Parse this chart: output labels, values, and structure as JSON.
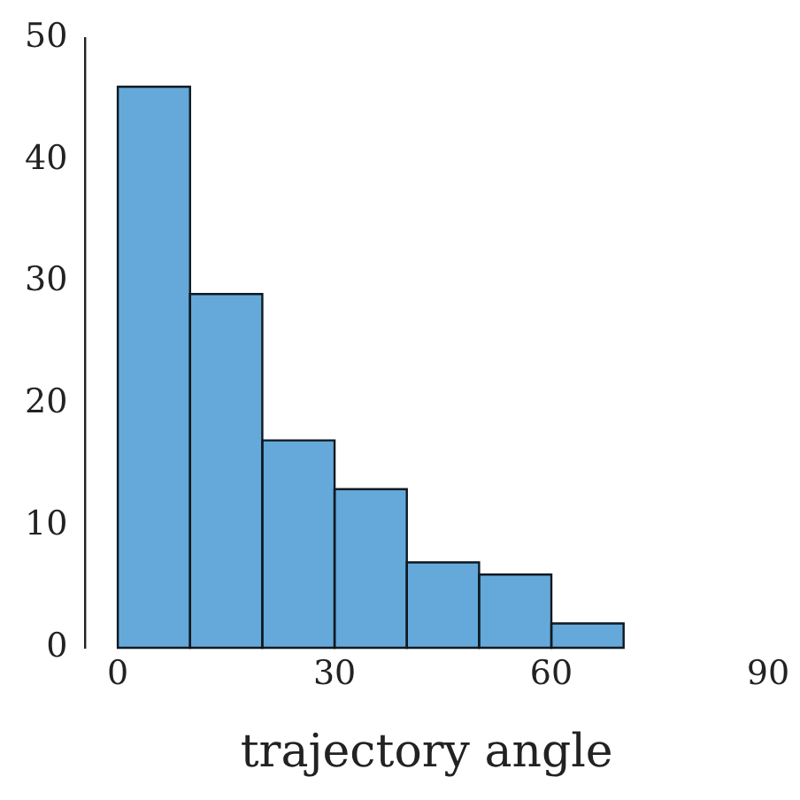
{
  "chart_data": {
    "type": "histogram",
    "xlabel": "trajectory angle",
    "bins": [
      0,
      10,
      20,
      30,
      40,
      50,
      60,
      70
    ],
    "values": [
      46,
      29,
      17,
      13,
      7,
      6,
      2
    ],
    "color": "#64a9d9",
    "xlim": [
      -4.5,
      90
    ],
    "xticks": [
      0,
      30,
      60,
      90
    ],
    "ylim": [
      0,
      50
    ],
    "yticks": [
      0,
      10,
      20,
      30,
      40,
      50
    ],
    "grid": false,
    "legend": false
  }
}
